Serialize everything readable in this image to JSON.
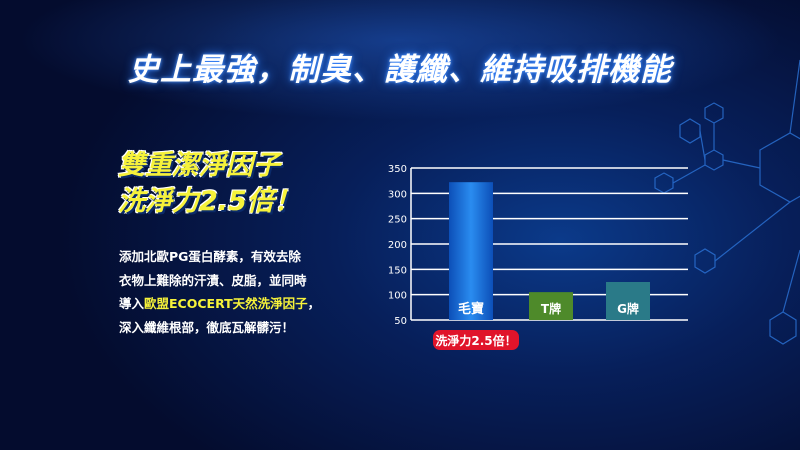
{
  "headline": "史上最強，制臭、護纖、維持吸排機能",
  "subheadline": [
    "雙重潔淨因子",
    "洗淨力2.5倍！"
  ],
  "body": {
    "line1": "添加北歐PG蛋白酵素，有效去除",
    "line2": "衣物上難除的汗漬、皮脂，並同時",
    "line3_pre": "導入",
    "line3_highlight": "歐盟ECOCERT天然洗淨因子",
    "line3_post": "，",
    "line4": "深入纖維根部，徹底瓦解髒污！"
  },
  "colors": {
    "highlight": "#f6f23a",
    "badge": "#e0142a"
  },
  "chart_data": {
    "type": "bar",
    "categories": [
      "毛寶",
      "T牌",
      "G牌"
    ],
    "values": [
      322,
      105,
      125
    ],
    "colors": [
      "#1a78e6",
      "#4e8a2a",
      "#2a7a88"
    ],
    "ylim": [
      50,
      350
    ],
    "yticks": [
      50,
      100,
      150,
      200,
      250,
      300,
      350
    ],
    "grid": true,
    "annotation": "洗淨力2.5倍！"
  }
}
